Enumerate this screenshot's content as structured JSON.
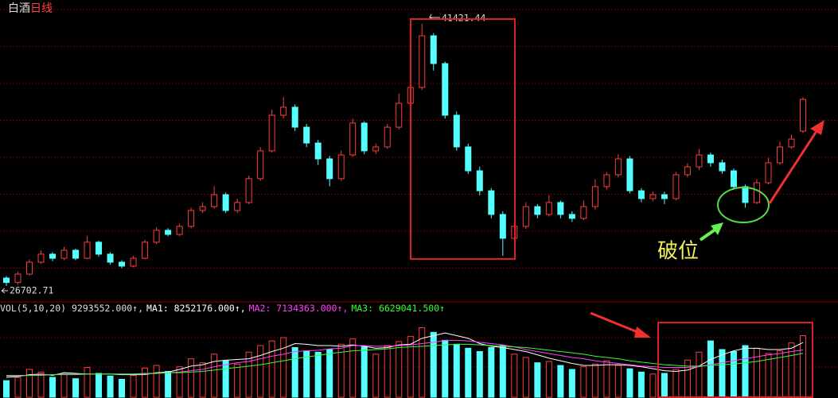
{
  "chart_data": [
    {
      "type": "candlestick",
      "title": "白酒",
      "subtitle": "日线",
      "up_color": "#ff3c3c",
      "down_color": "#54ffff",
      "ylim": [
        25811,
        42759
      ],
      "high_label": "41421.44",
      "low_label": "26702.71",
      "annotation": "破位",
      "ohlc": [
        [
          27150,
          27250,
          26702.71,
          26900
        ],
        [
          26900,
          27500,
          26800,
          27370
        ],
        [
          27370,
          28200,
          27300,
          28040
        ],
        [
          28040,
          28700,
          27950,
          28490
        ],
        [
          28490,
          28600,
          28100,
          28260
        ],
        [
          28260,
          28900,
          28150,
          28710
        ],
        [
          28710,
          28800,
          28150,
          28260
        ],
        [
          28260,
          29500,
          28200,
          29160
        ],
        [
          29160,
          29250,
          28350,
          28490
        ],
        [
          28490,
          28600,
          27900,
          28040
        ],
        [
          28040,
          28150,
          27700,
          27820
        ],
        [
          27820,
          28400,
          27750,
          28260
        ],
        [
          28260,
          29300,
          28200,
          29160
        ],
        [
          29160,
          30000,
          29050,
          29830
        ],
        [
          29830,
          29950,
          29500,
          29600
        ],
        [
          29600,
          30200,
          29500,
          30050
        ],
        [
          30050,
          31100,
          29950,
          30940
        ],
        [
          30940,
          31400,
          30800,
          31160
        ],
        [
          31160,
          32300,
          31050,
          31830
        ],
        [
          31830,
          31950,
          30800,
          30940
        ],
        [
          30940,
          31600,
          30800,
          31390
        ],
        [
          31390,
          32900,
          31300,
          32730
        ],
        [
          32730,
          34500,
          32600,
          34290
        ],
        [
          34290,
          36600,
          34200,
          36290
        ],
        [
          36290,
          37300,
          36100,
          36740
        ],
        [
          36740,
          36900,
          35400,
          35620
        ],
        [
          35620,
          35800,
          34500,
          34730
        ],
        [
          34730,
          34900,
          33500,
          33840
        ],
        [
          33840,
          34000,
          32300,
          32730
        ],
        [
          32730,
          34300,
          32600,
          34060
        ],
        [
          34060,
          36100,
          33950,
          35850
        ],
        [
          35850,
          35950,
          34100,
          34290
        ],
        [
          34290,
          34700,
          34100,
          34510
        ],
        [
          34510,
          35800,
          34400,
          35620
        ],
        [
          35620,
          37500,
          35500,
          36960
        ],
        [
          36960,
          38600,
          36800,
          37850
        ],
        [
          37850,
          41421.44,
          37700,
          40750
        ],
        [
          40750,
          40900,
          38800,
          39190
        ],
        [
          39190,
          39300,
          36100,
          36290
        ],
        [
          36290,
          36500,
          34300,
          34510
        ],
        [
          34510,
          34700,
          33000,
          33170
        ],
        [
          33170,
          33400,
          31800,
          32050
        ],
        [
          32050,
          32200,
          30500,
          30720
        ],
        [
          30720,
          30900,
          28398,
          29380
        ],
        [
          29380,
          30300,
          29200,
          30050
        ],
        [
          30050,
          31400,
          29900,
          31160
        ],
        [
          31160,
          31300,
          30500,
          30720
        ],
        [
          30720,
          31800,
          30600,
          31390
        ],
        [
          31390,
          31500,
          30500,
          30720
        ],
        [
          30720,
          30900,
          30300,
          30500
        ],
        [
          30500,
          31500,
          30400,
          31160
        ],
        [
          31160,
          32700,
          31000,
          32280
        ],
        [
          32280,
          33100,
          32100,
          32950
        ],
        [
          32950,
          34100,
          32800,
          33840
        ],
        [
          33840,
          34000,
          31900,
          32050
        ],
        [
          32050,
          32200,
          31400,
          31610
        ],
        [
          31610,
          32000,
          31450,
          31830
        ],
        [
          31830,
          32000,
          31300,
          31610
        ],
        [
          31610,
          33100,
          31500,
          32950
        ],
        [
          32950,
          33600,
          32800,
          33390
        ],
        [
          33390,
          34400,
          33200,
          34060
        ],
        [
          34060,
          34200,
          33400,
          33620
        ],
        [
          33620,
          33800,
          33000,
          33170
        ],
        [
          33170,
          33300,
          32100,
          32280
        ],
        [
          32280,
          32400,
          31100,
          31390
        ],
        [
          31390,
          32700,
          31300,
          32500
        ],
        [
          32500,
          33900,
          32400,
          33620
        ],
        [
          33620,
          34800,
          33500,
          34510
        ],
        [
          34510,
          35200,
          34400,
          34950
        ],
        [
          35400,
          37300,
          35300,
          37180
        ]
      ]
    },
    {
      "type": "volume",
      "title": "VOL(5,10,20)",
      "value_label": " 9293552.000↑,",
      "ylim": [
        0,
        12000000
      ],
      "values": [
        2500000,
        3000000,
        4200000,
        3800000,
        3000000,
        3500000,
        2800000,
        4500000,
        3600000,
        3200000,
        2700000,
        3300000,
        4400000,
        4800000,
        3900000,
        4600000,
        5800000,
        5200000,
        6500000,
        5500000,
        5000000,
        6800000,
        7800000,
        8500000,
        9000000,
        7500000,
        7000000,
        6800000,
        7200000,
        8000000,
        8800000,
        7600000,
        6500000,
        7800000,
        8400000,
        9200000,
        10500000,
        9800000,
        8600000,
        8000000,
        7400000,
        6900000,
        7500000,
        7800000,
        6500000,
        6000000,
        5200000,
        5400000,
        4800000,
        4200000,
        4600000,
        5000000,
        5500000,
        4800000,
        4300000,
        3800000,
        3500000,
        3600000,
        4200000,
        5600000,
        6800000,
        8500000,
        7200000,
        6900000,
        7800000,
        7400000,
        6600000,
        7000000,
        8200000,
        9293552
      ],
      "series": [
        {
          "name": "MA1",
          "color": "#ffffff",
          "value_label": ": 8252176.000↑,",
          "values": [
            3000000,
            3100000,
            3400000,
            3500000,
            3300000,
            3700000,
            3600000,
            3500000,
            3500000,
            3500000,
            3400000,
            3400000,
            3400000,
            3700000,
            3800000,
            4200000,
            4700000,
            4900000,
            5400000,
            5600000,
            5700000,
            5800000,
            6300000,
            6900000,
            7400000,
            8100000,
            8000000,
            7800000,
            7800000,
            7700000,
            7900000,
            7700000,
            7400000,
            7500000,
            7900000,
            8000000,
            8900000,
            9300000,
            9700000,
            9300000,
            8900000,
            8100000,
            7700000,
            7500000,
            7200000,
            6900000,
            6400000,
            5900000,
            5500000,
            5100000,
            4800000,
            4800000,
            4900000,
            4900000,
            4800000,
            4600000,
            4300000,
            4000000,
            3900000,
            4100000,
            4700000,
            5700000,
            6400000,
            7000000,
            7400000,
            7400000,
            7200000,
            7200000,
            7400000,
            8252176
          ]
        },
        {
          "name": "MA2",
          "color": "#ff40ff",
          "value_label": ": 7134363.000↑,",
          "values": [
            3200000,
            3200000,
            3300000,
            3400000,
            3400000,
            3500000,
            3500000,
            3500000,
            3500000,
            3500000,
            3500000,
            3500000,
            3500000,
            3600000,
            3700000,
            3800000,
            4000000,
            4200000,
            4600000,
            4900000,
            5200000,
            5400000,
            5800000,
            6200000,
            6500000,
            6900000,
            7000000,
            7100000,
            7300000,
            7400000,
            7800000,
            7800000,
            7700000,
            7700000,
            7800000,
            7900000,
            8100000,
            8300000,
            8600000,
            8600000,
            8500000,
            8300000,
            8100000,
            7900000,
            7600000,
            7200000,
            6900000,
            6600000,
            6300000,
            6000000,
            5800000,
            5500000,
            5300000,
            5100000,
            4900000,
            4700000,
            4600000,
            4500000,
            4500000,
            4500000,
            4600000,
            4900000,
            5200000,
            5500000,
            5800000,
            6100000,
            6400000,
            6600000,
            6900000,
            7134363
          ]
        },
        {
          "name": "MA3",
          "color": "#33ff33",
          "value_label": ": 6629041.500↑",
          "values": [
            3300000,
            3300000,
            3300000,
            3300000,
            3400000,
            3400000,
            3400000,
            3500000,
            3500000,
            3500000,
            3500000,
            3500000,
            3600000,
            3600000,
            3700000,
            3700000,
            3800000,
            3900000,
            4100000,
            4300000,
            4500000,
            4700000,
            4900000,
            5200000,
            5500000,
            5800000,
            6100000,
            6300000,
            6600000,
            6800000,
            7000000,
            7100000,
            7200000,
            7300000,
            7500000,
            7600000,
            7700000,
            7800000,
            7900000,
            8000000,
            8000000,
            7900000,
            7800000,
            7700000,
            7600000,
            7500000,
            7300000,
            7100000,
            6900000,
            6700000,
            6500000,
            6200000,
            6000000,
            5800000,
            5500000,
            5300000,
            5100000,
            4900000,
            4800000,
            4700000,
            4700000,
            4800000,
            4900000,
            5000000,
            5200000,
            5400000,
            5700000,
            6000000,
            6300000,
            6629041.5
          ]
        }
      ]
    }
  ]
}
